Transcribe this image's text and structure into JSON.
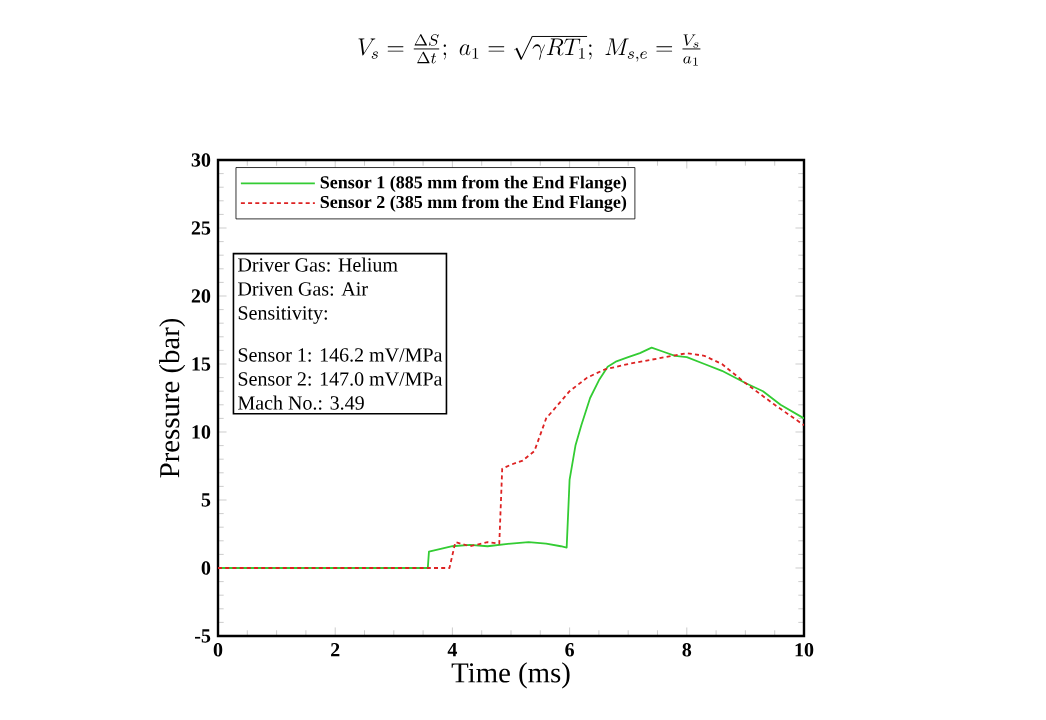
{
  "chart_data": {
    "type": "line",
    "annotations": [
      "V_s = \\frac{\\Delta S}{\\Delta t};\\; a_1 = \\sqrt{\\gamma R T_1};\\; M_{s,e} = \\frac{V_s}{a_1}",
      "Driver Gas: Helium",
      "Driven Gas: Air",
      "Sensitivity:",
      "Sensor 1: 146.2 mV/MPa",
      "Sensor 2: 147.0 mV/MPa",
      "Mach No.: 3.49"
    ],
    "xlabel": "Time (ms)",
    "ylabel": "Pressure (bar)",
    "xlim": [
      0,
      10
    ],
    "ylim": [
      -5,
      30
    ],
    "xticks": [
      0,
      2,
      4,
      6,
      8,
      10
    ],
    "yticks": [
      -5,
      0,
      5,
      10,
      15,
      20,
      25,
      30
    ],
    "legend": "top",
    "marker": "none",
    "series": [
      {
        "name": "Sensor 1 (885 mm from the End Flange)",
        "color": "#33cc33",
        "line_style": "solid",
        "x": [
          0,
          3.58,
          3.6,
          3.8,
          4.0,
          4.3,
          4.6,
          5.0,
          5.3,
          5.6,
          5.85,
          5.95,
          6.0,
          6.1,
          6.2,
          6.35,
          6.5,
          6.65,
          6.8,
          7.0,
          7.2,
          7.4,
          7.6,
          7.8,
          8.0,
          8.3,
          8.6,
          9.0,
          9.3,
          9.6,
          10
        ],
        "values": [
          0,
          0,
          1.2,
          1.4,
          1.6,
          1.7,
          1.6,
          1.8,
          1.9,
          1.8,
          1.6,
          1.5,
          6.5,
          9,
          10.5,
          12.5,
          13.8,
          14.8,
          15.2,
          15.5,
          15.8,
          16.2,
          15.9,
          15.6,
          15.5,
          15.0,
          14.5,
          13.6,
          13.0,
          12.0,
          11.0
        ]
      },
      {
        "name": "Sensor 2 (385 mm from the End Flange)",
        "color": "#dd2222",
        "line_style": "dashed",
        "x": [
          0,
          3.95,
          4.05,
          4.3,
          4.6,
          4.8,
          4.85,
          5.0,
          5.2,
          5.4,
          5.6,
          5.8,
          6.0,
          6.3,
          6.6,
          7.0,
          7.5,
          8.0,
          8.3,
          8.6,
          9.0,
          9.5,
          10
        ],
        "values": [
          0,
          0,
          1.9,
          1.6,
          1.9,
          1.8,
          7.3,
          7.6,
          7.9,
          8.6,
          11.0,
          12.0,
          13.0,
          14.0,
          14.6,
          15.0,
          15.4,
          15.8,
          15.6,
          15.0,
          13.6,
          12.0,
          10.5
        ]
      }
    ]
  }
}
